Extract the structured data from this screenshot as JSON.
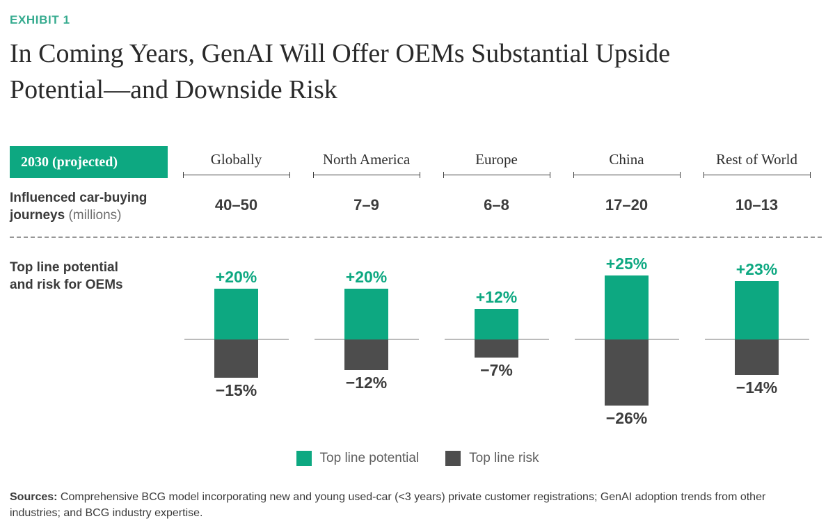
{
  "exhibit_label": "EXHIBIT 1",
  "title_line1": "In Coming Years, GenAI Will Offer OEMs Substantial Upside",
  "title_line2": "Potential—and Downside Risk",
  "badge_label": "2030 (projected)",
  "row_labels": {
    "journeys_bold": "Influenced car-buying journeys",
    "journeys_unit": " (millions)",
    "bars_line1": "Top line potential",
    "bars_line2": "and risk for OEMs"
  },
  "colors": {
    "green": "#0DA881",
    "dark_gray": "#4D4D4D",
    "exhibit_green": "#36AB8F"
  },
  "legend": [
    {
      "label": "Top line potential",
      "color": "#0DA881"
    },
    {
      "label": "Top line risk",
      "color": "#4D4D4D"
    }
  ],
  "sources": {
    "bold": "Sources:",
    "text": " Comprehensive BCG model incorporating new and young used-car (<3 years) private customer registrations; GenAI adoption trends from other industries; and BCG industry expertise."
  },
  "chart_data": {
    "type": "bar",
    "categories": [
      "Globally",
      "North America",
      "Europe",
      "China",
      "Rest of World"
    ],
    "journeys_millions": [
      "40–50",
      "7–9",
      "6–8",
      "17–20",
      "10–13"
    ],
    "series": [
      {
        "name": "Top line potential",
        "values": [
          20,
          20,
          12,
          25,
          23
        ]
      },
      {
        "name": "Top line risk",
        "values": [
          -15,
          -12,
          -7,
          -26,
          -14
        ]
      }
    ],
    "title": "2030 (projected) top line potential and risk for OEMs",
    "ylabel": "Top line potential and risk for OEMs",
    "unit": "%",
    "baseline": 0,
    "legend_position": "bottom",
    "grid": false
  }
}
